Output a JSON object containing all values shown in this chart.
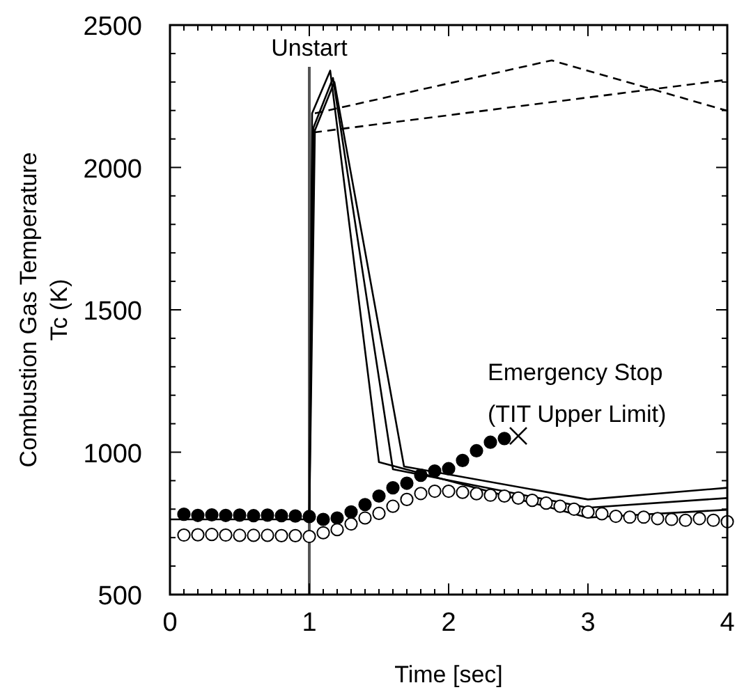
{
  "chart_data": {
    "type": "line",
    "xlabel": "Time [sec]",
    "ylabel": "Combustion Gas Temperature\nTc (K)",
    "xlim": [
      0,
      4
    ],
    "ylim": [
      500,
      2500
    ],
    "xticks": [
      0,
      {
        "value": 0.1,
        "label": null
      },
      {
        "value": 0.2,
        "label": null
      },
      {
        "value": 0.3,
        "label": null
      },
      {
        "value": 0.4,
        "label": null
      },
      {
        "value": 0.5,
        "label": null
      },
      {
        "value": 0.6,
        "label": null
      },
      {
        "value": 0.7,
        "label": null
      },
      {
        "value": 0.8,
        "label": null
      },
      {
        "value": 0.9,
        "label": null
      },
      1,
      {
        "value": 1.1,
        "label": null
      },
      {
        "value": 1.2,
        "label": null
      },
      {
        "value": 1.3,
        "label": null
      },
      {
        "value": 1.4,
        "label": null
      },
      {
        "value": 1.5,
        "label": null
      },
      {
        "value": 1.6,
        "label": null
      },
      {
        "value": 1.7,
        "label": null
      },
      {
        "value": 1.8,
        "label": null
      },
      {
        "value": 1.9,
        "label": null
      },
      2,
      {
        "value": 2.1,
        "label": null
      },
      {
        "value": 2.2,
        "label": null
      },
      {
        "value": 2.3,
        "label": null
      },
      {
        "value": 2.4,
        "label": null
      },
      {
        "value": 2.5,
        "label": null
      },
      {
        "value": 2.6,
        "label": null
      },
      {
        "value": 2.7,
        "label": null
      },
      {
        "value": 2.8,
        "label": null
      },
      {
        "value": 2.9,
        "label": null
      },
      3,
      {
        "value": 3.1,
        "label": null
      },
      {
        "value": 3.2,
        "label": null
      },
      {
        "value": 3.3,
        "label": null
      },
      {
        "value": 3.4,
        "label": null
      },
      {
        "value": 3.5,
        "label": null
      },
      {
        "value": 3.6,
        "label": null
      },
      {
        "value": 3.7,
        "label": null
      },
      {
        "value": 3.8,
        "label": null
      },
      {
        "value": 3.9,
        "label": null
      },
      4
    ],
    "yticks": [
      500,
      {
        "value": 600,
        "label": null
      },
      {
        "value": 700,
        "label": null
      },
      {
        "value": 800,
        "label": null
      },
      {
        "value": 900,
        "label": null
      },
      1000,
      {
        "value": 1100,
        "label": null
      },
      {
        "value": 1200,
        "label": null
      },
      {
        "value": 1300,
        "label": null
      },
      {
        "value": 1400,
        "label": null
      },
      1500,
      {
        "value": 1600,
        "label": null
      },
      {
        "value": 1700,
        "label": null
      },
      {
        "value": 1800,
        "label": null
      },
      {
        "value": 1900,
        "label": null
      },
      2000,
      {
        "value": 2100,
        "label": null
      },
      {
        "value": 2200,
        "label": null
      },
      {
        "value": 2300,
        "label": null
      },
      {
        "value": 2400,
        "label": null
      },
      2500
    ],
    "grid": false,
    "line_style": "solid",
    "series": [
      {
        "color": "#000000",
        "marker": "none",
        "x": [
          0,
          1,
          1.02,
          1.15,
          1.5,
          3.0,
          4.0
        ],
        "values": [
          764,
          764,
          2190,
          2340,
          965,
          770,
          798
        ]
      },
      {
        "color": "#000000",
        "marker": "none",
        "x": [
          1,
          1.03,
          1.17,
          1.6,
          3.0,
          4.0
        ],
        "values": [
          764,
          2140,
          2314,
          940,
          805,
          839
        ]
      },
      {
        "color": "#000000",
        "marker": "none",
        "x": [
          1,
          1.04,
          1.18,
          1.68,
          3.0,
          4.0
        ],
        "values": [
          764,
          2130,
          2300,
          950,
          834,
          875
        ]
      },
      {
        "color": "#000000",
        "marker": "none",
        "line_style": "dashed",
        "x": [
          1.04,
          2.74,
          4.0
        ],
        "values": [
          2190,
          2376,
          2199
        ]
      },
      {
        "color": "#000000",
        "marker": "none",
        "line_style": "dashed",
        "x": [
          1.03,
          4.0
        ],
        "values": [
          2123,
          2308
        ]
      },
      {
        "type": "scatter",
        "color": "#000000",
        "marker": "circle",
        "x": [
          0.1,
          0.2,
          0.3,
          0.4,
          0.5,
          0.6,
          0.7,
          0.8,
          0.9,
          1.0,
          1.1,
          1.2,
          1.3,
          1.4,
          1.5,
          1.6,
          1.7,
          1.8,
          1.9,
          2.0,
          2.1,
          2.2,
          2.3,
          2.4
        ],
        "values": [
          782,
          778,
          780,
          778,
          779,
          777,
          779,
          777,
          776,
          774,
          764,
          769,
          790,
          816,
          846,
          875,
          891,
          919,
          934,
          942,
          971,
          1005,
          1035,
          1048
        ]
      },
      {
        "type": "scatter",
        "color": "#ffffff",
        "marker": "circle",
        "x": [
          0.1,
          0.2,
          0.3,
          0.4,
          0.5,
          0.6,
          0.7,
          0.8,
          0.9,
          1.0,
          1.1,
          1.2,
          1.3,
          1.4,
          1.5,
          1.6,
          1.7,
          1.8,
          1.9,
          2.0,
          2.1,
          2.2,
          2.3,
          2.4,
          2.5,
          2.6,
          2.7,
          2.8,
          2.9,
          3.0,
          3.1,
          3.2,
          3.3,
          3.4,
          3.5,
          3.6,
          3.7,
          3.8,
          3.9,
          4.0
        ],
        "values": [
          709,
          710,
          711,
          709,
          708,
          708,
          708,
          707,
          707,
          704,
          717,
          728,
          748,
          769,
          785,
          810,
          834,
          855,
          863,
          863,
          859,
          854,
          849,
          846,
          839,
          831,
          821,
          810,
          800,
          790,
          784,
          775,
          772,
          772,
          767,
          764,
          761,
          767,
          761,
          756
        ]
      },
      {
        "type": "scatter",
        "color": "#000000",
        "marker": "cross",
        "x": [
          2.5
        ],
        "values": [
          1057
        ]
      }
    ],
    "ref_lines": [
      {
        "axis": "x",
        "value": 1,
        "label": "Unstart",
        "color": "#555555"
      }
    ],
    "annotations": [
      {
        "text": "Emergency Stop\n(TIT  Upper Limit)",
        "x": 2.5,
        "y": 1057
      }
    ]
  }
}
